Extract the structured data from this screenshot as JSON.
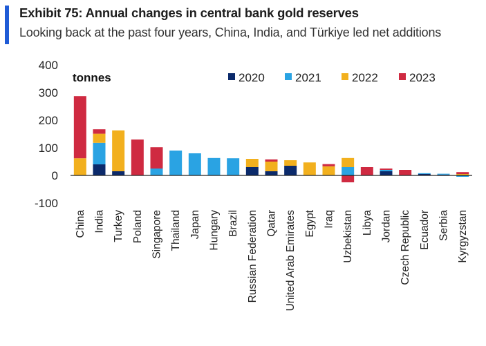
{
  "header": {
    "title": "Exhibit 75: Annual changes in central bank gold reserves",
    "subtitle": "Looking back at the past four years, China, India, and Türkiye led net additions"
  },
  "colors": {
    "accent": "#1f5bd6",
    "2020": "#0b2a6b",
    "2021": "#2aa3e3",
    "2022": "#f2b01e",
    "2023": "#cf2a41",
    "axis": "#222222"
  },
  "chart_data": {
    "type": "bar",
    "stacked": true,
    "title": "Exhibit 75: Annual changes in central bank gold reserves",
    "subtitle": "Looking back at the past four years, China, India, and Türkiye led net additions",
    "ylabel": "tonnes",
    "xlabel": "",
    "ylim": [
      -100,
      400
    ],
    "yticks": [
      400,
      300,
      200,
      100,
      0,
      -100
    ],
    "legend_position": "top",
    "categories": [
      "China",
      "India",
      "Turkey",
      "Poland",
      "Singapore",
      "Thailand",
      "Japan",
      "Hungary",
      "Brazil",
      "Russian Federation",
      "Qatar",
      "United Arab Emirates",
      "Egypt",
      "Iraq",
      "Uzbekistan",
      "Libya",
      "Jordan",
      "Czech Republic",
      "Ecuador",
      "Serbia",
      "Kyrgyzstan"
    ],
    "series": [
      {
        "name": "2020",
        "values": [
          0,
          40,
          15,
          0,
          0,
          0,
          0,
          0,
          0,
          30,
          15,
          35,
          0,
          0,
          0,
          0,
          15,
          0,
          5,
          3,
          0
        ]
      },
      {
        "name": "2021",
        "values": [
          0,
          78,
          0,
          0,
          25,
          90,
          80,
          63,
          62,
          0,
          0,
          0,
          0,
          0,
          30,
          0,
          5,
          0,
          3,
          3,
          -5
        ]
      },
      {
        "name": "2022",
        "values": [
          62,
          33,
          148,
          0,
          0,
          0,
          0,
          0,
          0,
          30,
          35,
          20,
          47,
          33,
          33,
          0,
          0,
          0,
          0,
          0,
          5
        ]
      },
      {
        "name": "2023",
        "values": [
          225,
          16,
          0,
          130,
          77,
          0,
          0,
          0,
          0,
          0,
          8,
          0,
          0,
          8,
          -25,
          30,
          5,
          20,
          0,
          0,
          7
        ]
      }
    ]
  }
}
